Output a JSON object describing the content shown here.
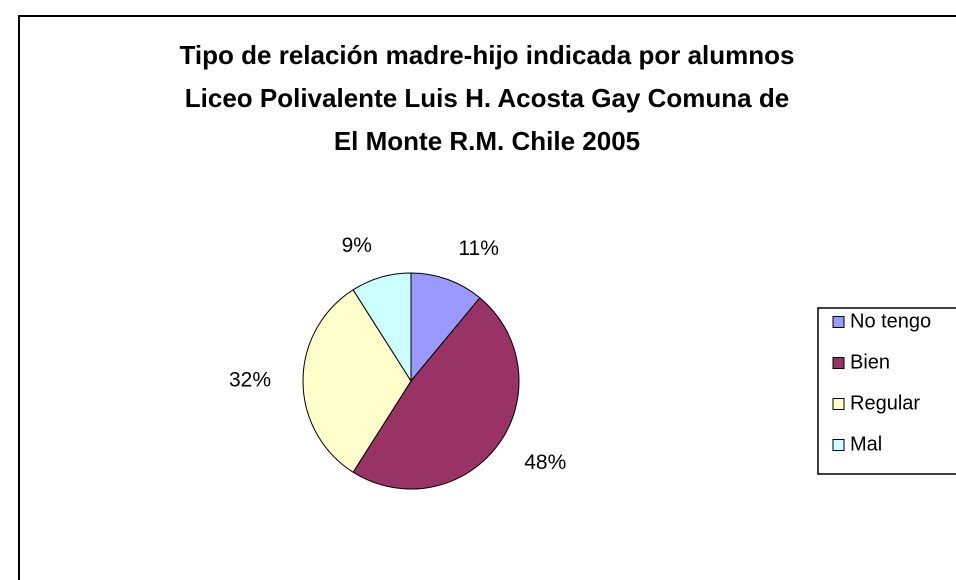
{
  "chart_data": {
    "type": "pie",
    "title": [
      "Tipo de relación madre-hijo indicada por alumnos",
      "Liceo Polivalente Luis H. Acosta Gay Comuna de",
      "El Monte R.M. Chile 2005"
    ],
    "categories": [
      "No tengo",
      "Bien",
      "Regular",
      "Mal"
    ],
    "values": [
      11,
      48,
      32,
      9
    ],
    "value_labels": [
      "11%",
      "48%",
      "32%",
      "9%"
    ],
    "colors": [
      "#9999ff",
      "#993366",
      "#ffffcc",
      "#ccffff"
    ],
    "legend": "right"
  }
}
